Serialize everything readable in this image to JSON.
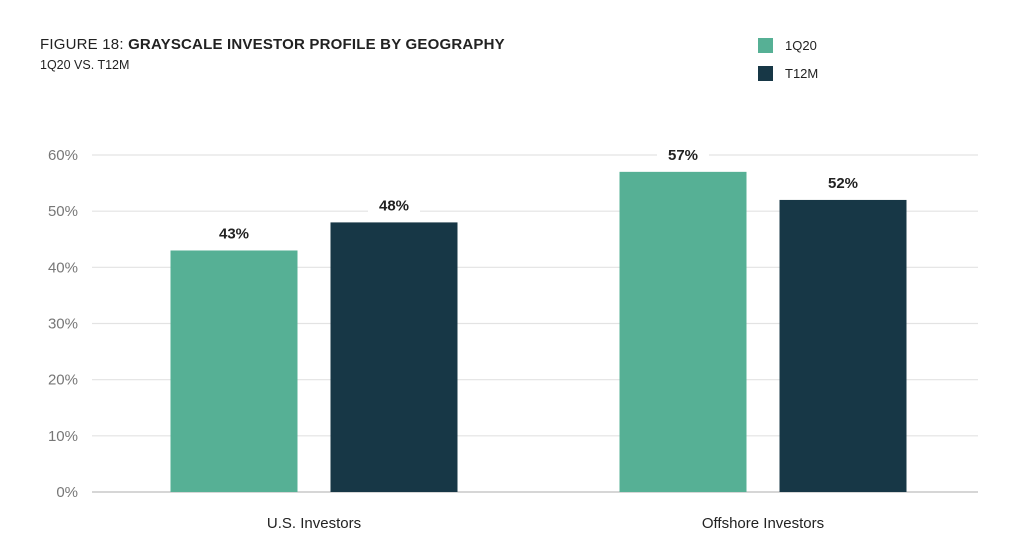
{
  "header": {
    "title_prefix": "FIGURE 18: ",
    "title_main": "GRAYSCALE INVESTOR PROFILE BY GEOGRAPHY",
    "subtitle": "1Q20 VS. T12M"
  },
  "legend": [
    {
      "label": "1Q20",
      "color": "#56b095"
    },
    {
      "label": "T12M",
      "color": "#173746"
    }
  ],
  "chart_data": {
    "type": "bar",
    "categories": [
      "U.S. Investors",
      "Offshore Investors"
    ],
    "series": [
      {
        "name": "1Q20",
        "values": [
          43,
          57
        ],
        "labels": [
          "43%",
          "57%"
        ],
        "color": "#56b095"
      },
      {
        "name": "T12M",
        "values": [
          48,
          52
        ],
        "labels": [
          "48%",
          "52%"
        ],
        "color": "#173746"
      }
    ],
    "yticks": [
      "0%",
      "10%",
      "20%",
      "30%",
      "40%",
      "50%",
      "60%"
    ],
    "ylim": [
      0,
      60
    ],
    "grid": true,
    "legend_position": "top-right"
  }
}
